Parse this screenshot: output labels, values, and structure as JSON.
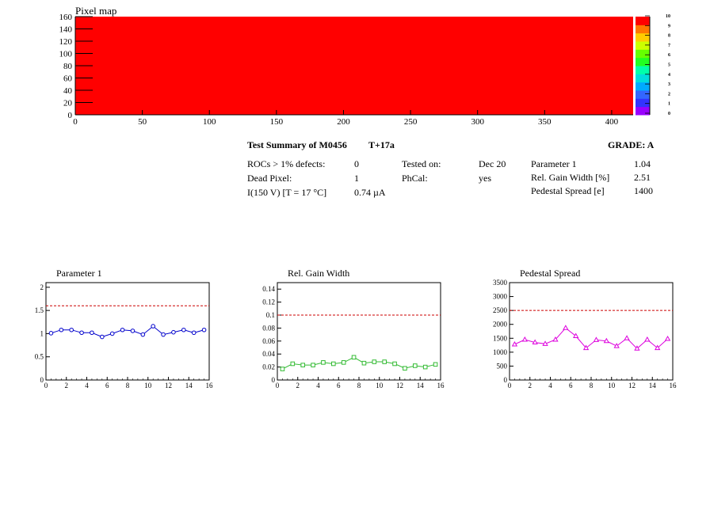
{
  "pixel_map": {
    "title": "Pixel map",
    "fill_color": "#ff0000",
    "x_ticks": [
      "0",
      "50",
      "100",
      "150",
      "200",
      "250",
      "300",
      "350",
      "400"
    ],
    "y_ticks": [
      "0",
      "20",
      "40",
      "60",
      "80",
      "100",
      "120",
      "140",
      "160"
    ],
    "xlim": [
      0,
      416
    ],
    "ylim": [
      0,
      160
    ],
    "palette_labels": [
      "0",
      "1",
      "2",
      "3",
      "4",
      "5",
      "6",
      "7",
      "8",
      "9",
      "10"
    ],
    "palette_colors": [
      "#9900ff",
      "#3333ff",
      "#3366ff",
      "#00aaff",
      "#00dddd",
      "#00ffaa",
      "#22ff22",
      "#66ff00",
      "#ccff00",
      "#ffcc00",
      "#ff7700",
      "#ff0000"
    ]
  },
  "summary": {
    "title": "Test Summary of M0456",
    "subtitle": "T+17a",
    "grade": "GRADE:  A",
    "rows": [
      {
        "label": "ROCs > 1% defects:",
        "value": "0"
      },
      {
        "label": "Dead Pixel:",
        "value": "1"
      },
      {
        "label": "I(150 V) [T = 17 °C]",
        "value": "0.74 µA"
      }
    ],
    "test_info": [
      {
        "label": "Tested on:",
        "value": "Dec 20"
      },
      {
        "label": "PhCal:",
        "value": "yes"
      }
    ],
    "params": [
      {
        "label": "Parameter 1",
        "value": "1.04"
      },
      {
        "label": "Rel. Gain Width [%]",
        "value": "2.51"
      },
      {
        "label": "Pedestal Spread [e]",
        "value": "1400"
      }
    ]
  },
  "chart_data": [
    {
      "type": "line",
      "title": "Parameter 1",
      "x": [
        0.5,
        1.5,
        2.5,
        3.5,
        4.5,
        5.5,
        6.5,
        7.5,
        8.5,
        9.5,
        10.5,
        11.5,
        12.5,
        13.5,
        14.5,
        15.5
      ],
      "values": [
        1.01,
        1.08,
        1.08,
        1.02,
        1.02,
        0.93,
        1.0,
        1.08,
        1.06,
        0.98,
        1.16,
        0.98,
        1.03,
        1.08,
        1.02,
        1.08
      ],
      "xlim": [
        0,
        16
      ],
      "ylim": [
        0,
        2.1
      ],
      "x_ticks": [
        "0",
        "2",
        "4",
        "6",
        "8",
        "10",
        "12",
        "14",
        "16"
      ],
      "y_ticks": [
        "0",
        "0.5",
        "1",
        "1.5",
        "2"
      ],
      "threshold": 1.6,
      "color": "#0000cc",
      "marker": "circle"
    },
    {
      "type": "line",
      "title": "Rel. Gain Width",
      "x": [
        0.5,
        1.5,
        2.5,
        3.5,
        4.5,
        5.5,
        6.5,
        7.5,
        8.5,
        9.5,
        10.5,
        11.5,
        12.5,
        13.5,
        14.5,
        15.5
      ],
      "values": [
        0.017,
        0.025,
        0.023,
        0.023,
        0.027,
        0.025,
        0.027,
        0.035,
        0.026,
        0.028,
        0.028,
        0.025,
        0.018,
        0.022,
        0.02,
        0.024
      ],
      "xlim": [
        0,
        16
      ],
      "ylim": [
        0,
        0.15
      ],
      "x_ticks": [
        "0",
        "2",
        "4",
        "6",
        "8",
        "10",
        "12",
        "14",
        "16"
      ],
      "y_ticks": [
        "0",
        "0.02",
        "0.04",
        "0.06",
        "0.08",
        "0.1",
        "0.12",
        "0.14"
      ],
      "threshold": 0.1,
      "color": "#33bb33",
      "marker": "square"
    },
    {
      "type": "line",
      "title": "Pedestal Spread",
      "x": [
        0.5,
        1.5,
        2.5,
        3.5,
        4.5,
        5.5,
        6.5,
        7.5,
        8.5,
        9.5,
        10.5,
        11.5,
        12.5,
        13.5,
        14.5,
        15.5
      ],
      "values": [
        1280,
        1450,
        1350,
        1300,
        1450,
        1870,
        1580,
        1150,
        1440,
        1400,
        1220,
        1500,
        1130,
        1450,
        1150,
        1480
      ],
      "xlim": [
        0,
        16
      ],
      "ylim": [
        0,
        3500
      ],
      "x_ticks": [
        "0",
        "2",
        "4",
        "6",
        "8",
        "10",
        "12",
        "14",
        "16"
      ],
      "y_ticks": [
        "0",
        "500",
        "1000",
        "1500",
        "2000",
        "2500",
        "3000",
        "3500"
      ],
      "threshold": 2500,
      "color": "#dd00dd",
      "marker": "triangle"
    }
  ]
}
